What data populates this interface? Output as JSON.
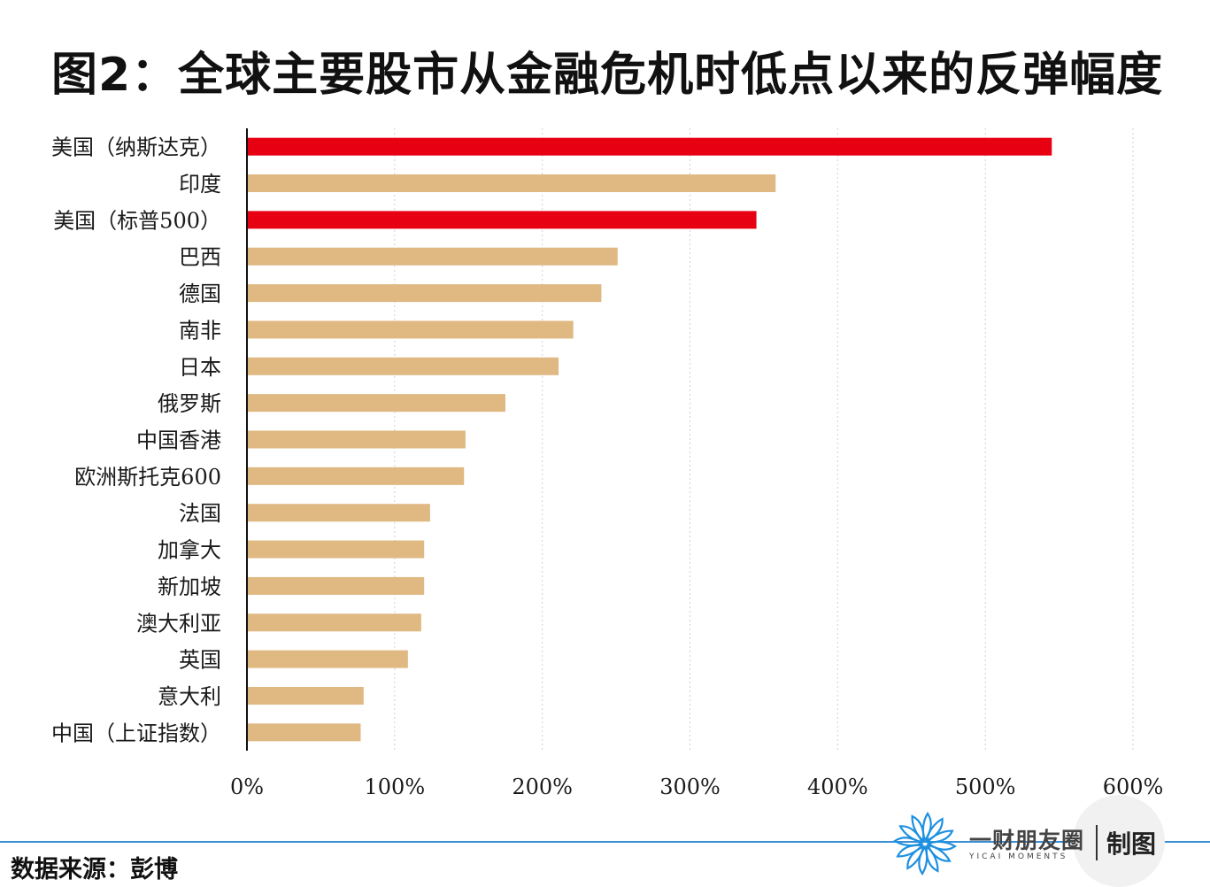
{
  "title": "图2：全球主要股市从金融危机时低点以来的反弹幅度",
  "source": "数据来源：彭博",
  "brand": {
    "name": "一财朋友圈",
    "subtitle": "YICAI MOMENTS",
    "suffix": "制图",
    "color": "#1e90e0"
  },
  "chart_data": {
    "type": "bar",
    "orientation": "horizontal",
    "title": "图2：全球主要股市从金融危机时低点以来的反弹幅度",
    "categories": [
      "美国（纳斯达克）",
      "印度",
      "美国（标普500）",
      "巴西",
      "德国",
      "南非",
      "日本",
      "俄罗斯",
      "中国香港",
      "欧洲斯托克600",
      "法国",
      "加拿大",
      "新加坡",
      "澳大利亚",
      "英国",
      "意大利",
      "中国（上证指数）"
    ],
    "values": [
      545,
      358,
      345,
      251,
      240,
      221,
      211,
      175,
      148,
      147,
      124,
      120,
      120,
      118,
      109,
      79,
      77
    ],
    "highlight": [
      true,
      false,
      true,
      false,
      false,
      false,
      false,
      false,
      false,
      false,
      false,
      false,
      false,
      false,
      false,
      false,
      false
    ],
    "colors": {
      "default": "#dfb882",
      "highlight": "#e60012",
      "grid": "#d0d0d0",
      "axis": "#111111"
    },
    "xlim": [
      0,
      600
    ],
    "xticks": [
      0,
      100,
      200,
      300,
      400,
      500,
      600
    ],
    "xtick_labels": [
      "0%",
      "100%",
      "200%",
      "300%",
      "400%",
      "500%",
      "600%"
    ],
    "grid": "vertical dotted",
    "xlabel": "",
    "ylabel": ""
  }
}
